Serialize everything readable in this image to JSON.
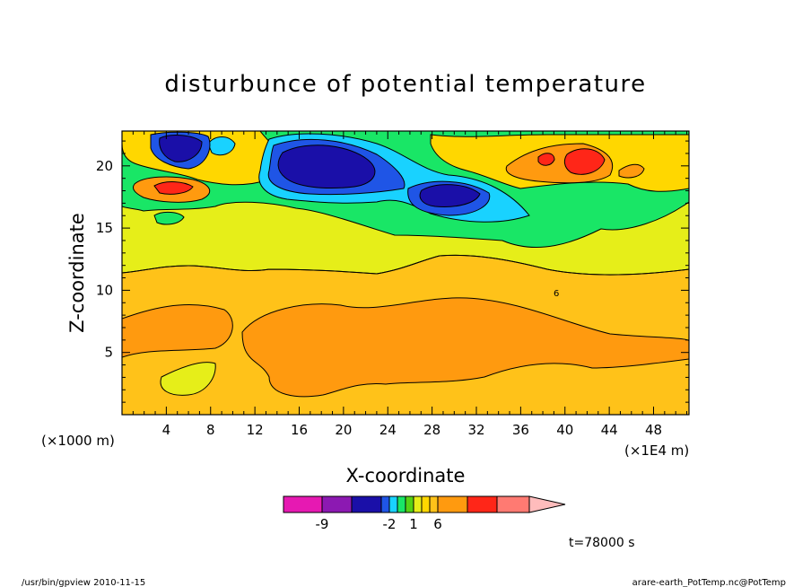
{
  "chart_data": {
    "type": "heatmap",
    "title": "disturbunce of potential temperature",
    "xlabel": "X-coordinate",
    "ylabel": "Z-coordinate",
    "x_unit_left": "(×1000 m)",
    "x_unit_right": "(×1E4 m)",
    "x_ticks": [
      "4",
      "8",
      "12",
      "16",
      "20",
      "24",
      "28",
      "32",
      "36",
      "40",
      "44",
      "48"
    ],
    "y_ticks": [
      "5",
      "10",
      "15",
      "20"
    ],
    "xlim": [
      0,
      51.2
    ],
    "ylim": [
      0,
      22.8
    ],
    "contour_label": "6",
    "colorbar": {
      "levels": [
        -12,
        -9,
        -6,
        -3,
        -2,
        -1,
        0,
        1,
        2,
        3,
        6,
        9,
        12,
        15
      ],
      "labels": [
        "-9",
        "-2",
        "1",
        "6"
      ],
      "colors": [
        "#e619b2",
        "#8c19b2",
        "#1a0fa8",
        "#1f55e6",
        "#19d2ff",
        "#19e666",
        "#55d214",
        "#e6ee19",
        "#ffd700",
        "#ffc219",
        "#ff9a0f",
        "#ff2618",
        "#ff7a72",
        "#ffbcbc"
      ]
    },
    "timestamp": "t=78000 s"
  },
  "footer": {
    "left": "/usr/bin/gpview   2010-11-15",
    "right": "arare-earth_PotTemp.nc@PotTemp"
  }
}
